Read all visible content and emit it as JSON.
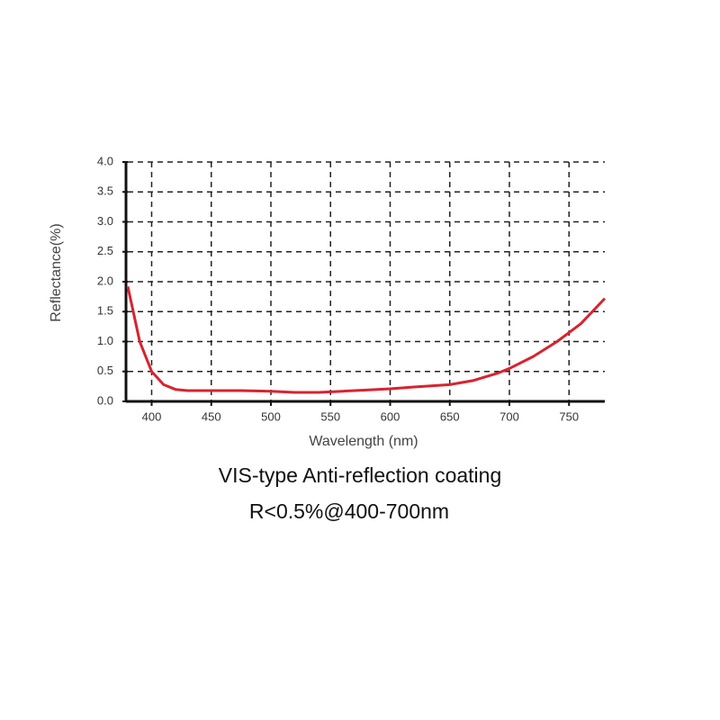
{
  "chart_data": {
    "type": "line",
    "x_label": "Wavelength (nm)",
    "y_label": "Reflectance(%)",
    "annotations": [
      "VIS-type Anti-reflection coating",
      "R<0.5%@400-700nm"
    ],
    "x": [
      380,
      390,
      400,
      410,
      420,
      430,
      450,
      475,
      500,
      520,
      540,
      560,
      580,
      600,
      620,
      650,
      670,
      690,
      700,
      720,
      740,
      760,
      780
    ],
    "series": [
      {
        "color": "#d8232f",
        "values": [
          1.92,
          1.0,
          0.5,
          0.28,
          0.2,
          0.18,
          0.18,
          0.18,
          0.17,
          0.15,
          0.15,
          0.17,
          0.19,
          0.21,
          0.24,
          0.28,
          0.35,
          0.47,
          0.55,
          0.75,
          1.0,
          1.3,
          1.72
        ]
      }
    ],
    "xlim": [
      380,
      780
    ],
    "xticks": [
      400,
      450,
      500,
      550,
      600,
      650,
      700,
      750
    ],
    "ylim": [
      0,
      4
    ],
    "yticks": [
      {
        "value": 0,
        "label": "0.0"
      },
      0.5,
      {
        "value": 1,
        "label": "1.0"
      },
      1.5,
      {
        "value": 2,
        "label": "2.0"
      },
      2.5,
      {
        "value": 3,
        "label": "3.0"
      },
      3.5,
      {
        "value": 4,
        "label": "4.0"
      }
    ],
    "grid": true
  }
}
